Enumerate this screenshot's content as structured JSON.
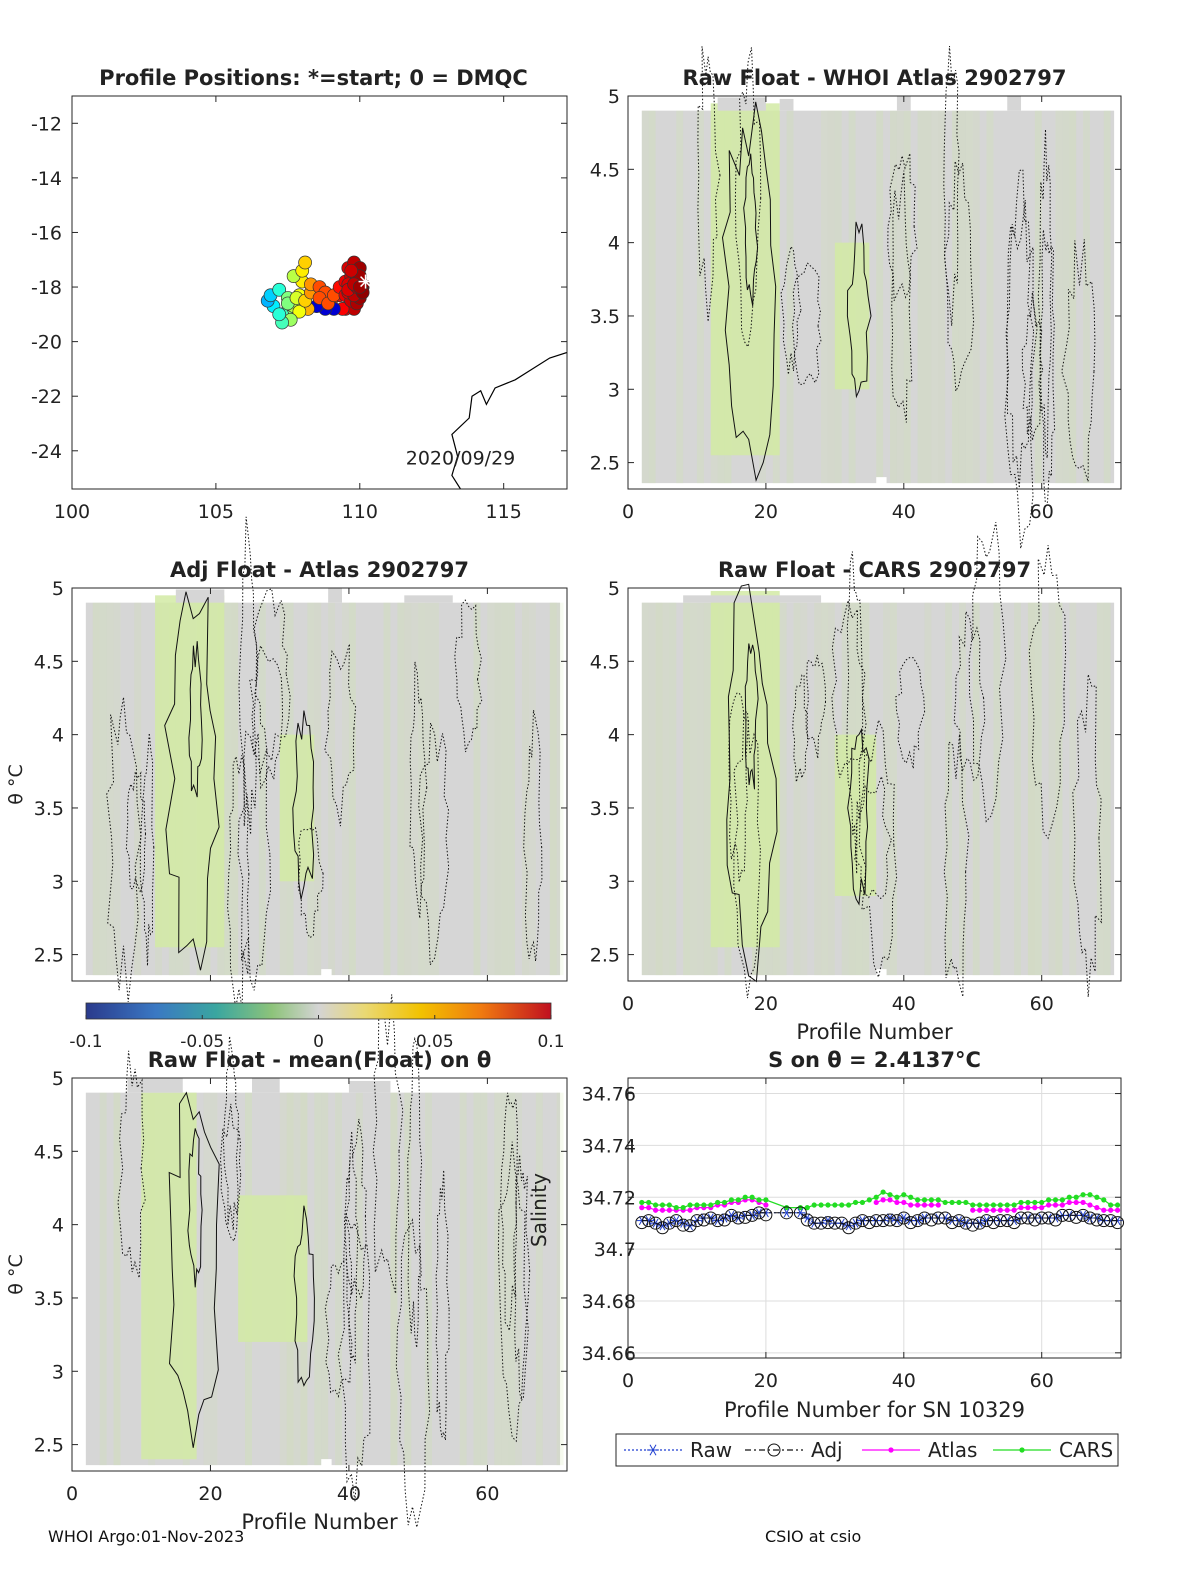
{
  "footer": {
    "left": "WHOI Argo:01-Nov-2023",
    "right": "CSIO at csio"
  },
  "colorbar": {
    "ticks": [
      "-0.1",
      "-0.05",
      "0",
      "0.05",
      "0.1"
    ],
    "range": [
      -0.1,
      0.1
    ],
    "colormap": "blue-green-grey-yellow-red"
  },
  "chart_data": [
    {
      "id": "map",
      "type": "scatter",
      "title": "Profile Positions: *=start; 0 = DMQC",
      "xlabel": "",
      "ylabel": "",
      "xlim": [
        100,
        117.2
      ],
      "ylim": [
        -25.4,
        -11.0
      ],
      "xticks": [
        "100",
        "105",
        "110",
        "115"
      ],
      "yticks": [
        "-12",
        "-14",
        "-16",
        "-18",
        "-20",
        "-22",
        "-24"
      ],
      "annotation": "2020/09/29",
      "start_marker": [
        110.2,
        -17.8
      ],
      "points": [
        [
          110.0,
          -17.8
        ],
        [
          109.7,
          -18.1
        ],
        [
          109.3,
          -18.3
        ],
        [
          109.0,
          -18.5
        ],
        [
          108.7,
          -18.7
        ],
        [
          109.5,
          -18.8
        ],
        [
          109.8,
          -18.8
        ],
        [
          109.4,
          -18.8
        ],
        [
          109.1,
          -18.8
        ],
        [
          108.8,
          -18.8
        ],
        [
          108.5,
          -18.7
        ],
        [
          108.2,
          -18.8
        ],
        [
          107.8,
          -18.9
        ],
        [
          107.5,
          -19.1
        ],
        [
          107.3,
          -19.0
        ],
        [
          107.0,
          -18.7
        ],
        [
          106.8,
          -18.5
        ],
        [
          106.9,
          -18.3
        ],
        [
          107.2,
          -18.1
        ],
        [
          107.5,
          -18.4
        ],
        [
          107.7,
          -18.7
        ],
        [
          107.9,
          -18.3
        ],
        [
          107.9,
          -18.9
        ],
        [
          107.6,
          -19.2
        ],
        [
          107.3,
          -19.3
        ],
        [
          107.2,
          -19.0
        ],
        [
          107.5,
          -18.6
        ],
        [
          107.8,
          -18.4
        ],
        [
          108.1,
          -18.5
        ],
        [
          108.3,
          -18.2
        ],
        [
          108.0,
          -17.8
        ],
        [
          107.7,
          -17.6
        ],
        [
          108.0,
          -17.4
        ],
        [
          108.1,
          -17.1
        ],
        [
          108.3,
          -17.9
        ],
        [
          108.6,
          -18.0
        ],
        [
          108.8,
          -18.2
        ],
        [
          108.6,
          -18.4
        ],
        [
          108.9,
          -18.6
        ],
        [
          109.1,
          -18.3
        ],
        [
          109.3,
          -18.0
        ],
        [
          109.5,
          -18.3
        ],
        [
          109.7,
          -18.5
        ],
        [
          109.9,
          -18.6
        ],
        [
          110.0,
          -18.3
        ],
        [
          109.7,
          -18.0
        ],
        [
          109.5,
          -17.8
        ],
        [
          109.8,
          -17.5
        ],
        [
          109.6,
          -17.3
        ],
        [
          109.8,
          -17.1
        ],
        [
          110.0,
          -17.3
        ],
        [
          109.7,
          -17.6
        ],
        [
          109.9,
          -17.8
        ],
        [
          110.1,
          -18.0
        ],
        [
          109.9,
          -18.2
        ],
        [
          109.6,
          -18.2
        ],
        [
          110.0,
          -18.4
        ],
        [
          109.8,
          -18.0
        ],
        [
          109.6,
          -17.9
        ],
        [
          109.9,
          -17.7
        ],
        [
          110.1,
          -17.9
        ],
        [
          110.0,
          -18.1
        ],
        [
          109.8,
          -18.3
        ],
        [
          109.6,
          -18.1
        ],
        [
          109.9,
          -18.0
        ],
        [
          110.1,
          -18.2
        ],
        [
          110.0,
          -17.6
        ],
        [
          109.7,
          -17.4
        ],
        [
          109.8,
          -17.9
        ],
        [
          110.0,
          -18.0
        ]
      ],
      "coastline": [
        [
          113.5,
          -25.4
        ],
        [
          113.2,
          -24.9
        ],
        [
          113.4,
          -24.2
        ],
        [
          113.2,
          -23.4
        ],
        [
          113.8,
          -22.8
        ],
        [
          113.9,
          -22.0
        ],
        [
          114.2,
          -21.8
        ],
        [
          114.4,
          -22.3
        ],
        [
          114.7,
          -21.7
        ],
        [
          115.4,
          -21.4
        ],
        [
          116.0,
          -21.0
        ],
        [
          116.6,
          -20.6
        ],
        [
          117.2,
          -20.4
        ]
      ]
    },
    {
      "id": "raw-whoi",
      "type": "heatmap",
      "title": "Raw Float - WHOI Atlas  2902797",
      "xlabel": "",
      "ylabel": "",
      "xlim": [
        0,
        71.5
      ],
      "ylim": [
        2.32,
        5.0
      ],
      "xticks": [
        "0",
        "20",
        "40",
        "60"
      ],
      "yticks": [
        "5",
        "4.5",
        "4",
        "3.5",
        "3",
        "2.5"
      ]
    },
    {
      "id": "adj-atlas",
      "type": "heatmap",
      "title": "Adj Float - Atlas  2902797",
      "xlabel": "",
      "ylabel": "θ °C",
      "xlim": [
        0,
        71.5
      ],
      "ylim": [
        2.32,
        5.0
      ],
      "xticks": [],
      "yticks": [
        "5",
        "4.5",
        "4",
        "3.5",
        "3",
        "2.5"
      ]
    },
    {
      "id": "raw-cars",
      "type": "heatmap",
      "title": "Raw Float - CARS  2902797",
      "xlabel": "Profile Number",
      "ylabel": "",
      "xlim": [
        0,
        71.5
      ],
      "ylim": [
        2.32,
        5.0
      ],
      "xticks": [
        "0",
        "20",
        "40",
        "60"
      ],
      "yticks": [
        "5",
        "4.5",
        "4",
        "3.5",
        "3",
        "2.5"
      ]
    },
    {
      "id": "raw-mean",
      "type": "heatmap",
      "title": "Raw Float - mean(Float) on θ",
      "xlabel": "Profile Number",
      "ylabel": "θ °C",
      "xlim": [
        0,
        71.5
      ],
      "ylim": [
        2.32,
        5.0
      ],
      "xticks": [
        "0",
        "20",
        "40",
        "60"
      ],
      "yticks": [
        "5",
        "4.5",
        "4",
        "3.5",
        "3",
        "2.5"
      ]
    },
    {
      "id": "salinity",
      "type": "line",
      "title": "S on θ = 2.4137°C",
      "xlabel": "Profile Number for SN 10329",
      "ylabel": "Salinity",
      "xlim": [
        0,
        71.5
      ],
      "ylim": [
        34.658,
        34.766
      ],
      "xticks": [
        "0",
        "20",
        "40",
        "60"
      ],
      "yticks": [
        "34.76",
        "34.74",
        "34.72",
        "34.7",
        "34.68",
        "34.66"
      ],
      "grid": true,
      "legend": "bottom",
      "x": [
        2,
        3,
        4,
        5,
        6,
        7,
        8,
        9,
        10,
        11,
        12,
        13,
        14,
        15,
        16,
        17,
        18,
        19,
        20,
        23,
        25,
        26,
        27,
        28,
        29,
        30,
        31,
        32,
        33,
        34,
        35,
        36,
        37,
        38,
        39,
        40,
        41,
        42,
        43,
        44,
        45,
        46,
        47,
        48,
        49,
        50,
        51,
        52,
        53,
        54,
        55,
        56,
        57,
        58,
        59,
        60,
        61,
        62,
        63,
        64,
        65,
        66,
        67,
        68,
        69,
        70,
        71
      ],
      "series": [
        {
          "name": "Raw",
          "color": "#1f3fd0",
          "values": [
            34.711,
            34.711,
            34.71,
            34.709,
            34.71,
            34.711,
            34.71,
            34.709,
            34.711,
            34.712,
            34.712,
            34.711,
            34.712,
            34.713,
            34.712,
            34.713,
            34.713,
            34.714,
            34.714,
            34.714,
            34.714,
            34.712,
            34.71,
            34.71,
            34.711,
            34.71,
            34.71,
            34.709,
            34.71,
            34.711,
            34.711,
            34.711,
            34.711,
            34.712,
            34.711,
            34.712,
            34.711,
            34.711,
            34.712,
            34.712,
            34.712,
            34.712,
            34.711,
            34.711,
            34.71,
            34.71,
            34.71,
            34.711,
            34.711,
            34.711,
            34.711,
            34.711,
            34.712,
            34.712,
            34.712,
            34.712,
            34.712,
            34.712,
            34.713,
            34.713,
            34.713,
            34.713,
            34.712,
            34.712,
            34.711,
            34.711,
            34.711
          ]
        },
        {
          "name": "Adj",
          "color": "#111111",
          "values": [
            34.711,
            34.711,
            34.71,
            34.709,
            34.71,
            34.711,
            34.71,
            34.709,
            34.711,
            34.712,
            34.712,
            34.711,
            34.712,
            34.713,
            34.712,
            34.713,
            34.713,
            34.714,
            34.714,
            34.714,
            34.714,
            34.712,
            34.71,
            34.71,
            34.711,
            34.71,
            34.71,
            34.709,
            34.71,
            34.711,
            34.711,
            34.711,
            34.711,
            34.712,
            34.711,
            34.712,
            34.711,
            34.711,
            34.712,
            34.712,
            34.712,
            34.712,
            34.711,
            34.711,
            34.71,
            34.71,
            34.71,
            34.711,
            34.711,
            34.711,
            34.711,
            34.711,
            34.712,
            34.712,
            34.712,
            34.712,
            34.712,
            34.712,
            34.713,
            34.713,
            34.713,
            34.713,
            34.712,
            34.712,
            34.711,
            34.711,
            34.711
          ]
        },
        {
          "name": "Atlas",
          "color": "#ff00ff",
          "values": [
            34.716,
            34.716,
            34.715,
            34.715,
            34.715,
            34.715,
            34.715,
            34.715,
            34.716,
            34.716,
            34.716,
            34.717,
            34.717,
            34.718,
            34.718,
            34.719,
            34.719,
            34.718,
            34.717,
            null,
            null,
            null,
            null,
            null,
            null,
            null,
            null,
            null,
            null,
            null,
            null,
            34.718,
            34.719,
            34.719,
            34.718,
            34.718,
            34.717,
            34.717,
            34.717,
            34.717,
            34.717,
            null,
            null,
            null,
            null,
            34.715,
            34.715,
            34.715,
            34.715,
            34.715,
            34.715,
            34.715,
            34.716,
            34.716,
            34.716,
            34.716,
            34.717,
            34.717,
            34.717,
            34.718,
            34.718,
            34.718,
            34.717,
            34.716,
            34.715,
            34.715,
            34.715
          ]
        },
        {
          "name": "CARS",
          "color": "#22dd22",
          "values": [
            34.718,
            34.718,
            34.717,
            34.717,
            34.717,
            34.716,
            34.716,
            34.717,
            34.717,
            34.717,
            34.717,
            34.718,
            34.718,
            34.719,
            34.719,
            34.72,
            34.72,
            34.719,
            34.719,
            34.716,
            34.716,
            34.716,
            34.717,
            34.717,
            34.717,
            34.717,
            34.717,
            34.717,
            34.718,
            34.718,
            34.719,
            34.72,
            34.722,
            34.721,
            34.72,
            34.721,
            34.72,
            34.719,
            34.719,
            34.719,
            34.719,
            34.718,
            34.718,
            34.718,
            34.718,
            34.717,
            34.717,
            34.717,
            34.717,
            34.717,
            34.717,
            34.717,
            34.718,
            34.718,
            34.718,
            34.718,
            34.719,
            34.719,
            34.719,
            34.72,
            34.72,
            34.721,
            34.721,
            34.72,
            34.719,
            34.717,
            34.717
          ]
        }
      ]
    }
  ]
}
